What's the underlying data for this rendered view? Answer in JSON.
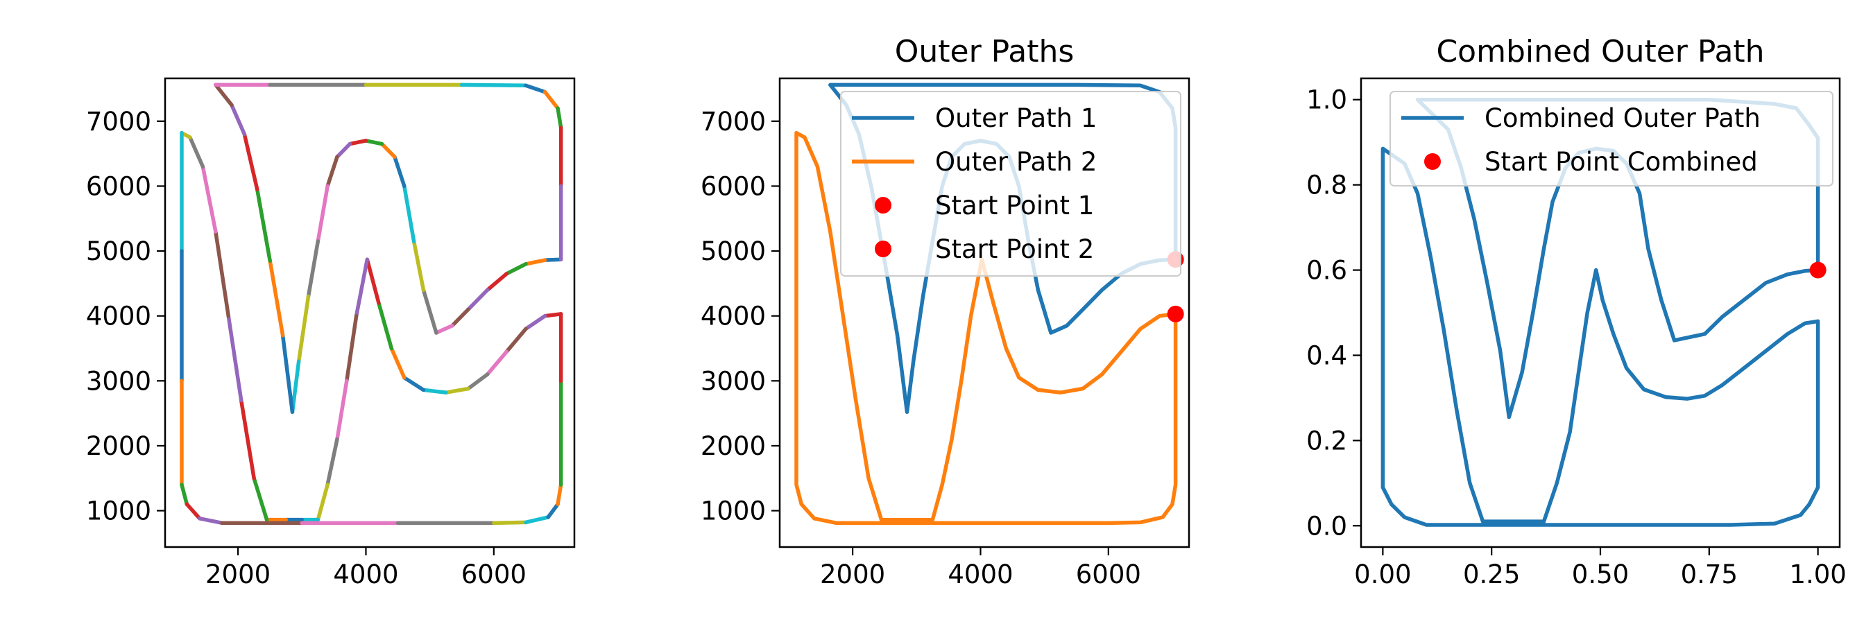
{
  "chart_data": [
    {
      "type": "line",
      "title": "",
      "xlabel": "",
      "ylabel": "",
      "xlim": [
        860,
        7260
      ],
      "ylim": [
        440,
        7660
      ],
      "xticks": [
        "2000",
        "4000",
        "6000"
      ],
      "xtick_values": [
        2000,
        4000,
        6000
      ],
      "yticks": [
        "1000",
        "2000",
        "3000",
        "4000",
        "5000",
        "6000",
        "7000"
      ],
      "ytick_values": [
        1000,
        2000,
        3000,
        4000,
        5000,
        6000,
        7000
      ],
      "segment_colors": [
        "#1f77b4",
        "#ff7f0e",
        "#2ca02c",
        "#d62728",
        "#9467bd",
        "#8c564b",
        "#e377c2",
        "#7f7f7f",
        "#bcbd22",
        "#17becf"
      ],
      "series": [
        {
          "style": "segmented",
          "points": [
            [
              7050,
              4870
            ],
            [
              6800,
              4860
            ],
            [
              6500,
              4800
            ],
            [
              6200,
              4650
            ],
            [
              5900,
              4400
            ],
            [
              5600,
              4100
            ],
            [
              5350,
              3850
            ],
            [
              5100,
              3740
            ],
            [
              4900,
              4400
            ],
            [
              4750,
              5150
            ],
            [
              4600,
              6000
            ],
            [
              4450,
              6450
            ],
            [
              4250,
              6650
            ],
            [
              4000,
              6700
            ],
            [
              3750,
              6650
            ],
            [
              3550,
              6450
            ],
            [
              3400,
              6000
            ],
            [
              3250,
              5150
            ],
            [
              3100,
              4300
            ],
            [
              2950,
              3300
            ],
            [
              2850,
              2520
            ],
            [
              2700,
              3700
            ],
            [
              2500,
              4850
            ],
            [
              2300,
              5950
            ],
            [
              2100,
              6800
            ],
            [
              1900,
              7250
            ],
            [
              1650,
              7560
            ],
            [
              2500,
              7560
            ],
            [
              4000,
              7560
            ],
            [
              5500,
              7560
            ],
            [
              6500,
              7550
            ],
            [
              6800,
              7450
            ],
            [
              7000,
              7200
            ],
            [
              7050,
              6900
            ],
            [
              7050,
              6000
            ],
            [
              7050,
              4870
            ]
          ]
        },
        {
          "style": "segmented",
          "points": [
            [
              7050,
              4030
            ],
            [
              6800,
              4000
            ],
            [
              6500,
              3800
            ],
            [
              6200,
              3450
            ],
            [
              5900,
              3100
            ],
            [
              5600,
              2880
            ],
            [
              5250,
              2820
            ],
            [
              4900,
              2860
            ],
            [
              4600,
              3050
            ],
            [
              4400,
              3500
            ],
            [
              4200,
              4200
            ],
            [
              4020,
              4870
            ],
            [
              3850,
              4000
            ],
            [
              3700,
              3000
            ],
            [
              3550,
              2100
            ],
            [
              3400,
              1400
            ],
            [
              3250,
              860
            ],
            [
              3000,
              860
            ],
            [
              2750,
              860
            ],
            [
              2450,
              860
            ],
            [
              2250,
              1500
            ],
            [
              2050,
              2700
            ],
            [
              1850,
              4000
            ],
            [
              1650,
              5300
            ],
            [
              1450,
              6300
            ],
            [
              1250,
              6750
            ],
            [
              1120,
              6820
            ],
            [
              1120,
              5000
            ],
            [
              1120,
              3000
            ],
            [
              1120,
              1400
            ],
            [
              1200,
              1100
            ],
            [
              1400,
              880
            ],
            [
              1750,
              810
            ],
            [
              3000,
              810
            ],
            [
              4500,
              810
            ],
            [
              6000,
              810
            ],
            [
              6500,
              820
            ],
            [
              6850,
              900
            ],
            [
              7000,
              1100
            ],
            [
              7050,
              1400
            ],
            [
              7050,
              3000
            ],
            [
              7050,
              4030
            ]
          ]
        }
      ]
    },
    {
      "type": "line",
      "title": "Outer Paths",
      "xlabel": "",
      "ylabel": "",
      "xlim": [
        860,
        7260
      ],
      "ylim": [
        440,
        7660
      ],
      "xticks": [
        "2000",
        "4000",
        "6000"
      ],
      "xtick_values": [
        2000,
        4000,
        6000
      ],
      "yticks": [
        "1000",
        "2000",
        "3000",
        "4000",
        "5000",
        "6000",
        "7000"
      ],
      "ytick_values": [
        1000,
        2000,
        3000,
        4000,
        5000,
        6000,
        7000
      ],
      "legend_position": "upper right",
      "series": [
        {
          "name": "Outer Path 1",
          "color": "#1f77b4",
          "points": [
            [
              7050,
              4870
            ],
            [
              6800,
              4860
            ],
            [
              6500,
              4800
            ],
            [
              6200,
              4650
            ],
            [
              5900,
              4400
            ],
            [
              5600,
              4100
            ],
            [
              5350,
              3850
            ],
            [
              5100,
              3740
            ],
            [
              4900,
              4400
            ],
            [
              4750,
              5150
            ],
            [
              4600,
              6000
            ],
            [
              4450,
              6450
            ],
            [
              4250,
              6650
            ],
            [
              4000,
              6700
            ],
            [
              3750,
              6650
            ],
            [
              3550,
              6450
            ],
            [
              3400,
              6000
            ],
            [
              3250,
              5150
            ],
            [
              3100,
              4300
            ],
            [
              2950,
              3300
            ],
            [
              2850,
              2520
            ],
            [
              2700,
              3700
            ],
            [
              2500,
              4850
            ],
            [
              2300,
              5950
            ],
            [
              2100,
              6800
            ],
            [
              1900,
              7250
            ],
            [
              1650,
              7560
            ],
            [
              2500,
              7560
            ],
            [
              4000,
              7560
            ],
            [
              5500,
              7560
            ],
            [
              6500,
              7550
            ],
            [
              6800,
              7450
            ],
            [
              7000,
              7200
            ],
            [
              7050,
              6900
            ],
            [
              7050,
              6000
            ],
            [
              7050,
              4870
            ]
          ]
        },
        {
          "name": "Outer Path 2",
          "color": "#ff7f0e",
          "points": [
            [
              7050,
              4030
            ],
            [
              6800,
              4000
            ],
            [
              6500,
              3800
            ],
            [
              6200,
              3450
            ],
            [
              5900,
              3100
            ],
            [
              5600,
              2880
            ],
            [
              5250,
              2820
            ],
            [
              4900,
              2860
            ],
            [
              4600,
              3050
            ],
            [
              4400,
              3500
            ],
            [
              4200,
              4200
            ],
            [
              4020,
              4870
            ],
            [
              3850,
              4000
            ],
            [
              3700,
              3000
            ],
            [
              3550,
              2100
            ],
            [
              3400,
              1400
            ],
            [
              3250,
              860
            ],
            [
              3000,
              860
            ],
            [
              2750,
              860
            ],
            [
              2450,
              860
            ],
            [
              2250,
              1500
            ],
            [
              2050,
              2700
            ],
            [
              1850,
              4000
            ],
            [
              1650,
              5300
            ],
            [
              1450,
              6300
            ],
            [
              1250,
              6750
            ],
            [
              1120,
              6820
            ],
            [
              1120,
              5000
            ],
            [
              1120,
              3000
            ],
            [
              1120,
              1400
            ],
            [
              1200,
              1100
            ],
            [
              1400,
              880
            ],
            [
              1750,
              810
            ],
            [
              3000,
              810
            ],
            [
              4500,
              810
            ],
            [
              6000,
              810
            ],
            [
              6500,
              820
            ],
            [
              6850,
              900
            ],
            [
              7000,
              1100
            ],
            [
              7050,
              1400
            ],
            [
              7050,
              3000
            ],
            [
              7050,
              4030
            ]
          ]
        },
        {
          "name": "Start Point 1",
          "color": "#ff0000",
          "marker": "o",
          "points": [
            [
              7050,
              4870
            ]
          ]
        },
        {
          "name": "Start Point 2",
          "color": "#ff0000",
          "marker": "o",
          "points": [
            [
              7050,
              4030
            ]
          ]
        }
      ]
    },
    {
      "type": "line",
      "title": "Combined Outer Path",
      "xlabel": "",
      "ylabel": "",
      "xlim": [
        -0.05,
        1.05
      ],
      "ylim": [
        -0.05,
        1.05
      ],
      "xticks": [
        "0.00",
        "0.25",
        "0.50",
        "0.75",
        "1.00"
      ],
      "xtick_values": [
        0,
        0.25,
        0.5,
        0.75,
        1.0
      ],
      "yticks": [
        "0.0",
        "0.2",
        "0.4",
        "0.6",
        "0.8",
        "1.0"
      ],
      "ytick_values": [
        0,
        0.2,
        0.4,
        0.6,
        0.8,
        1.0
      ],
      "legend_position": "upper right",
      "series": [
        {
          "name": "Combined Outer Path",
          "color": "#1f77b4",
          "points": [
            [
              1.0,
              0.6
            ],
            [
              0.97,
              0.598
            ],
            [
              0.93,
              0.59
            ],
            [
              0.88,
              0.57
            ],
            [
              0.83,
              0.53
            ],
            [
              0.78,
              0.49
            ],
            [
              0.74,
              0.45
            ],
            [
              0.67,
              0.435
            ],
            [
              0.64,
              0.53
            ],
            [
              0.61,
              0.65
            ],
            [
              0.59,
              0.78
            ],
            [
              0.56,
              0.85
            ],
            [
              0.53,
              0.88
            ],
            [
              0.49,
              0.885
            ],
            [
              0.45,
              0.875
            ],
            [
              0.42,
              0.84
            ],
            [
              0.39,
              0.76
            ],
            [
              0.37,
              0.65
            ],
            [
              0.345,
              0.5
            ],
            [
              0.32,
              0.36
            ],
            [
              0.29,
              0.255
            ],
            [
              0.27,
              0.41
            ],
            [
              0.24,
              0.57
            ],
            [
              0.21,
              0.72
            ],
            [
              0.18,
              0.84
            ],
            [
              0.15,
              0.93
            ],
            [
              0.08,
              1.0
            ],
            [
              0.2,
              1.0
            ],
            [
              0.5,
              1.0
            ],
            [
              0.75,
              1.0
            ],
            [
              0.9,
              0.99
            ],
            [
              0.95,
              0.98
            ],
            [
              0.98,
              0.94
            ],
            [
              1.0,
              0.91
            ],
            [
              1.0,
              0.8
            ],
            [
              1.0,
              0.6
            ]
          ]
        },
        {
          "name": "",
          "color": "#1f77b4",
          "points": [
            [
              1.0,
              0.48
            ],
            [
              0.97,
              0.475
            ],
            [
              0.93,
              0.45
            ],
            [
              0.88,
              0.41
            ],
            [
              0.83,
              0.37
            ],
            [
              0.78,
              0.33
            ],
            [
              0.74,
              0.305
            ],
            [
              0.7,
              0.298
            ],
            [
              0.65,
              0.302
            ],
            [
              0.6,
              0.32
            ],
            [
              0.56,
              0.37
            ],
            [
              0.53,
              0.45
            ],
            [
              0.505,
              0.53
            ],
            [
              0.49,
              0.6
            ],
            [
              0.47,
              0.5
            ],
            [
              0.45,
              0.36
            ],
            [
              0.43,
              0.22
            ],
            [
              0.4,
              0.1
            ],
            [
              0.37,
              0.01
            ],
            [
              0.33,
              0.01
            ],
            [
              0.28,
              0.01
            ],
            [
              0.23,
              0.01
            ],
            [
              0.2,
              0.1
            ],
            [
              0.17,
              0.27
            ],
            [
              0.14,
              0.46
            ],
            [
              0.11,
              0.63
            ],
            [
              0.08,
              0.78
            ],
            [
              0.05,
              0.85
            ],
            [
              0.0,
              0.885
            ],
            [
              0.0,
              0.6
            ],
            [
              0.0,
              0.3
            ],
            [
              0.0,
              0.09
            ],
            [
              0.02,
              0.05
            ],
            [
              0.05,
              0.02
            ],
            [
              0.1,
              0.002
            ],
            [
              0.3,
              0.002
            ],
            [
              0.6,
              0.002
            ],
            [
              0.8,
              0.002
            ],
            [
              0.9,
              0.005
            ],
            [
              0.96,
              0.025
            ],
            [
              0.98,
              0.05
            ],
            [
              1.0,
              0.09
            ],
            [
              1.0,
              0.3
            ],
            [
              1.0,
              0.48
            ]
          ]
        },
        {
          "name": "Start Point Combined",
          "color": "#ff0000",
          "marker": "o",
          "points": [
            [
              1.0,
              0.6
            ]
          ]
        }
      ]
    }
  ]
}
